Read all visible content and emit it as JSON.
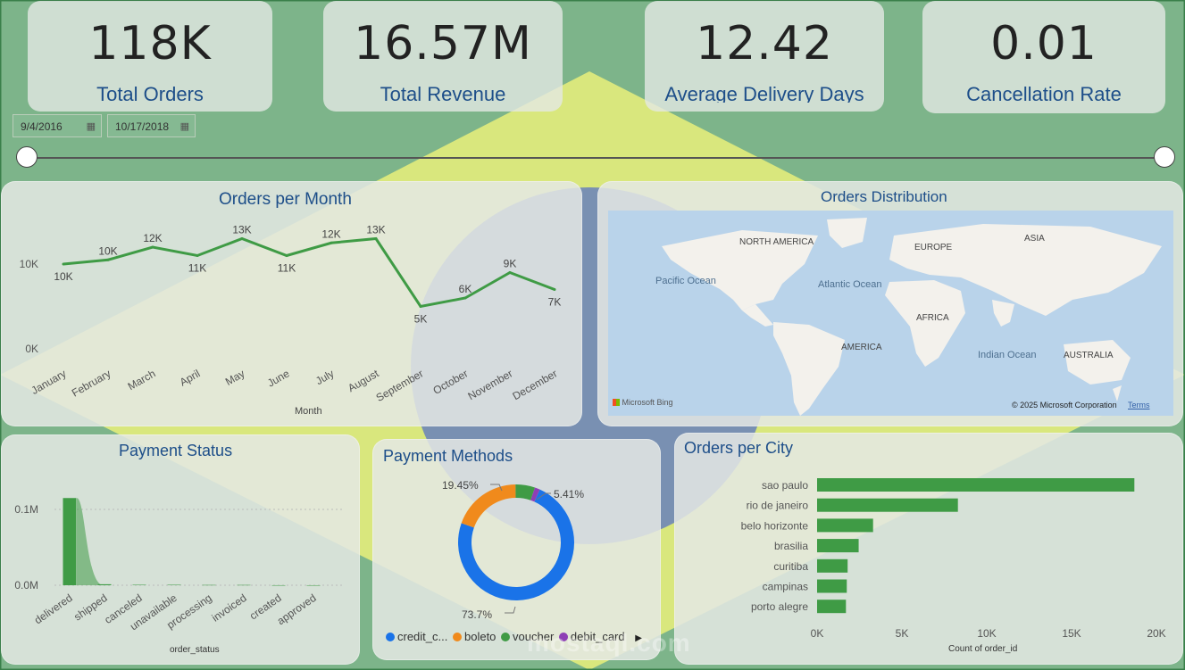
{
  "kpis": {
    "orders": {
      "value": "118K",
      "label": "Total Orders"
    },
    "revenue": {
      "value": "16.57M",
      "label": "Total Revenue"
    },
    "delivery": {
      "value": "12.42",
      "label": "Average Delivery Days"
    },
    "cancel": {
      "value": "0.01",
      "label": "Cancellation Rate"
    }
  },
  "date_range": {
    "start": "9/4/2016",
    "end": "10/17/2018"
  },
  "orders_per_month": {
    "title": "Orders per Month",
    "xlabel": "Month",
    "chart_data": {
      "type": "line",
      "categories": [
        "January",
        "February",
        "March",
        "April",
        "May",
        "June",
        "July",
        "August",
        "September",
        "October",
        "November",
        "December"
      ],
      "values": [
        10,
        10.5,
        12,
        11,
        13,
        11,
        12.5,
        13,
        5,
        6,
        9,
        7
      ],
      "data_labels": [
        "10K",
        "10K",
        "12K",
        "11K",
        "13K",
        "11K",
        "12K",
        "13K",
        "5K",
        "6K",
        "9K",
        "7K"
      ],
      "y_ticks": [
        "0K",
        "10K"
      ],
      "color": "#3f9b45"
    }
  },
  "map": {
    "title": "Orders Distribution",
    "labels": {
      "na": "NORTH AMERICA",
      "europe": "EUROPE",
      "asia": "ASIA",
      "pacific": "Pacific Ocean",
      "atlantic": "Atlantic Ocean",
      "africa": "AFRICA",
      "sa": "AMERICA",
      "indian": "Indian Ocean",
      "australia": "AUSTRALIA"
    },
    "bing": "Microsoft Bing",
    "copyright": "© 2025 Microsoft Corporation",
    "terms": "Terms"
  },
  "payment_status": {
    "title": "Payment Status",
    "xlabel": "order_status",
    "chart_data": {
      "type": "bar",
      "categories": [
        "delivered",
        "shipped",
        "canceled",
        "unavailable",
        "processing",
        "invoiced",
        "created",
        "approved"
      ],
      "values": [
        0.115,
        0.0013,
        0.0006,
        0.0006,
        0.0004,
        0.0004,
        5e-05,
        3e-05
      ],
      "y_ticks": [
        "0.0M",
        "0.1M"
      ],
      "color": "#3f9b45"
    }
  },
  "payment_methods": {
    "title": "Payment Methods",
    "chart_data": {
      "type": "pie",
      "labels": [
        "credit_card",
        "boleto",
        "voucher",
        "debit_card"
      ],
      "values": [
        73.7,
        19.45,
        5.41,
        1.44
      ],
      "colors": [
        "#1a73e8",
        "#f08a1c",
        "#3f9b45",
        "#8e3fb5"
      ],
      "data_labels": {
        "credit": "73.7%",
        "boleto": "19.45%",
        "voucher": "5.41%"
      }
    },
    "legend": [
      "credit_c...",
      "boleto",
      "voucher",
      "debit_card"
    ]
  },
  "orders_per_city": {
    "title": "Orders per City",
    "xlabel": "Count of order_id",
    "chart_data": {
      "type": "bar",
      "categories": [
        "sao paulo",
        "rio de janeiro",
        "belo horizonte",
        "brasilia",
        "curitiba",
        "campinas",
        "porto alegre"
      ],
      "values": [
        18700,
        8300,
        3300,
        2450,
        1800,
        1750,
        1700
      ],
      "x_ticks": [
        "0K",
        "5K",
        "10K",
        "15K",
        "20K"
      ],
      "xlim": [
        0,
        20000
      ],
      "color": "#3f9b45"
    }
  },
  "watermark": {
    "text": "mostaql.com"
  }
}
